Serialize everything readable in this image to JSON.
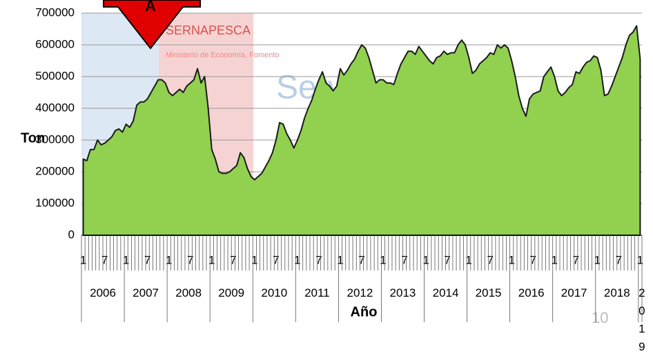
{
  "chart_data": {
    "type": "area",
    "y_axis_label": "Ton",
    "x_axis_label": "Año",
    "color": "#92d050",
    "line_color": "#1a1a1a",
    "ylim": [
      0,
      700000
    ],
    "yticks": [
      0,
      100000,
      200000,
      300000,
      400000,
      500000,
      600000,
      700000
    ],
    "grid": true,
    "years": [
      "2006",
      "2007",
      "2008",
      "2009",
      "2010",
      "2011",
      "2012",
      "2013",
      "2014",
      "2015",
      "2016",
      "2017",
      "2018",
      "2019"
    ],
    "categories": [
      "1",
      null,
      null,
      null,
      null,
      null,
      "7",
      null,
      null,
      null,
      null,
      null,
      "1",
      null,
      null,
      null,
      null,
      null,
      "7",
      null,
      null,
      null,
      null,
      null,
      "1",
      null,
      null,
      null,
      null,
      null,
      "7",
      null,
      null,
      null,
      null,
      null,
      "1",
      null,
      null,
      null,
      null,
      null,
      "7",
      null,
      null,
      null,
      null,
      null,
      "1",
      null,
      null,
      null,
      null,
      null,
      "7",
      null,
      null,
      null,
      null,
      null,
      "1",
      null,
      null,
      null,
      null,
      null,
      "7",
      null,
      null,
      null,
      null,
      null,
      "1",
      null,
      null,
      null,
      null,
      null,
      "7",
      null,
      null,
      null,
      null,
      null,
      "1",
      null,
      null,
      null,
      null,
      null,
      "7",
      null,
      null,
      null,
      null,
      null,
      "1",
      null,
      null,
      null,
      null,
      null,
      "7",
      null,
      null,
      null,
      null,
      null,
      "1",
      null,
      null,
      null,
      null,
      null,
      "7",
      null,
      null,
      null,
      null,
      null,
      "1",
      null,
      null,
      null,
      null,
      null,
      "7",
      null,
      null,
      null,
      null,
      null,
      "1",
      null,
      null,
      null,
      null,
      null,
      "7",
      null,
      null,
      null,
      null,
      null,
      "1",
      null,
      null,
      null,
      null,
      null,
      "7",
      null,
      null,
      null,
      null,
      null,
      "1"
    ],
    "values": [
      240000,
      235000,
      270000,
      270000,
      300000,
      285000,
      290000,
      300000,
      310000,
      330000,
      335000,
      325000,
      350000,
      340000,
      360000,
      410000,
      420000,
      420000,
      430000,
      450000,
      470000,
      490000,
      490000,
      480000,
      450000,
      440000,
      450000,
      460000,
      450000,
      470000,
      480000,
      490000,
      525000,
      480000,
      500000,
      400000,
      270000,
      240000,
      200000,
      195000,
      195000,
      200000,
      210000,
      220000,
      260000,
      245000,
      210000,
      185000,
      175000,
      185000,
      195000,
      215000,
      235000,
      260000,
      300000,
      355000,
      350000,
      320000,
      300000,
      275000,
      300000,
      330000,
      370000,
      400000,
      425000,
      460000,
      490000,
      515000,
      480000,
      470000,
      455000,
      470000,
      525000,
      505000,
      520000,
      540000,
      555000,
      580000,
      600000,
      590000,
      560000,
      520000,
      480000,
      490000,
      490000,
      480000,
      480000,
      475000,
      510000,
      540000,
      560000,
      580000,
      580000,
      570000,
      595000,
      580000,
      565000,
      550000,
      540000,
      560000,
      565000,
      580000,
      570000,
      575000,
      575000,
      600000,
      615000,
      600000,
      560000,
      510000,
      520000,
      540000,
      550000,
      560000,
      575000,
      570000,
      600000,
      590000,
      600000,
      590000,
      550000,
      500000,
      440000,
      400000,
      375000,
      430000,
      445000,
      450000,
      455000,
      500000,
      515000,
      530000,
      500000,
      455000,
      440000,
      450000,
      465000,
      475000,
      515000,
      510000,
      530000,
      545000,
      550000,
      565000,
      560000,
      520000,
      440000,
      445000,
      470000,
      500000,
      530000,
      560000,
      600000,
      630000,
      640000,
      660000,
      555000
    ]
  },
  "watermark": {
    "org": "SERNAPESCA",
    "ministry": "Ministerio de Economía, Fomento",
    "service": "Serv"
  },
  "marker": "A",
  "page_number": "10"
}
